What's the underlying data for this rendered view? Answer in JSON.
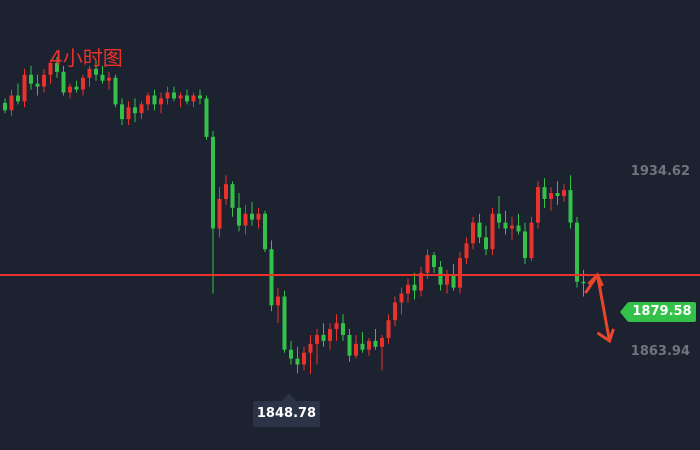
{
  "title": "4小时图",
  "chart_data": {
    "type": "candlestick",
    "title": "4小时图",
    "ylim": [
      1840,
      1955
    ],
    "price_labels": [
      {
        "name": "upper",
        "value": 1934.62,
        "text": "1934.62"
      },
      {
        "name": "lower",
        "value": 1863.94,
        "text": "1863.94"
      }
    ],
    "current_price": {
      "value": 1879.58,
      "text": "1879.58"
    },
    "low_marker": {
      "value": 1848.78,
      "text": "1848.78"
    },
    "horizontal_line": {
      "value": 1882.3
    },
    "colors": {
      "up": "#e8322b",
      "down": "#33c14a",
      "line": "#e8322b",
      "arrow": "#e8452b",
      "background": "#1c2230"
    },
    "candles": [
      [
        1940.5,
        1942.0,
        1937.0,
        1938.0
      ],
      [
        1938.0,
        1945.0,
        1936.0,
        1943.0
      ],
      [
        1943.0,
        1947.0,
        1940.0,
        1941.0
      ],
      [
        1941.0,
        1952.0,
        1939.0,
        1950.0
      ],
      [
        1950.0,
        1953.0,
        1945.0,
        1947.0
      ],
      [
        1947.0,
        1950.0,
        1943.0,
        1946.0
      ],
      [
        1946.0,
        1952.0,
        1944.0,
        1950.0
      ],
      [
        1950.0,
        1955.0,
        1947.0,
        1954.0
      ],
      [
        1954.0,
        1956.0,
        1949.0,
        1951.0
      ],
      [
        1951.0,
        1953.0,
        1943.0,
        1944.0
      ],
      [
        1944.0,
        1947.0,
        1942.0,
        1946.0
      ],
      [
        1946.0,
        1948.0,
        1944.0,
        1945.0
      ],
      [
        1945.0,
        1950.0,
        1943.0,
        1949.0
      ],
      [
        1949.0,
        1953.0,
        1946.0,
        1952.0
      ],
      [
        1952.0,
        1955.0,
        1948.0,
        1950.0
      ],
      [
        1950.0,
        1953.0,
        1947.0,
        1948.0
      ],
      [
        1948.0,
        1951.0,
        1945.0,
        1949.0
      ],
      [
        1949.0,
        1950.0,
        1939.0,
        1940.0
      ],
      [
        1940.0,
        1942.0,
        1933.0,
        1935.0
      ],
      [
        1935.0,
        1941.0,
        1933.0,
        1939.0
      ],
      [
        1939.0,
        1942.0,
        1934.0,
        1937.0
      ],
      [
        1937.0,
        1941.0,
        1935.0,
        1940.0
      ],
      [
        1940.0,
        1944.0,
        1938.0,
        1943.0
      ],
      [
        1943.0,
        1945.0,
        1938.0,
        1940.0
      ],
      [
        1940.0,
        1944.0,
        1937.0,
        1942.0
      ],
      [
        1942.0,
        1946.0,
        1940.0,
        1944.0
      ],
      [
        1944.0,
        1946.0,
        1941.0,
        1942.0
      ],
      [
        1942.0,
        1944.0,
        1939.0,
        1943.0
      ],
      [
        1943.0,
        1945.0,
        1940.0,
        1941.0
      ],
      [
        1941.0,
        1944.0,
        1939.0,
        1943.0
      ],
      [
        1943.0,
        1945.0,
        1940.0,
        1942.0
      ],
      [
        1942.0,
        1943.0,
        1928.0,
        1929.0
      ],
      [
        1929.0,
        1931.0,
        1876.0,
        1898.0
      ],
      [
        1898.0,
        1912.0,
        1895.0,
        1908.0
      ],
      [
        1908.0,
        1916.0,
        1906.0,
        1913.0
      ],
      [
        1913.0,
        1914.0,
        1902.0,
        1905.0
      ],
      [
        1905.0,
        1910.0,
        1897.0,
        1899.0
      ],
      [
        1899.0,
        1906.0,
        1896.0,
        1903.0
      ],
      [
        1903.0,
        1907.0,
        1899.0,
        1901.0
      ],
      [
        1901.0,
        1905.0,
        1898.0,
        1903.0
      ],
      [
        1903.0,
        1904.0,
        1890.0,
        1891.0
      ],
      [
        1891.0,
        1894.0,
        1870.0,
        1872.0
      ],
      [
        1872.0,
        1878.0,
        1866.0,
        1875.0
      ],
      [
        1875.0,
        1877.0,
        1856.0,
        1857.0
      ],
      [
        1857.0,
        1860.0,
        1852.0,
        1854.0
      ],
      [
        1854.0,
        1858.0,
        1849.0,
        1852.0
      ],
      [
        1852.0,
        1858.0,
        1850.0,
        1856.0
      ],
      [
        1856.0,
        1862.0,
        1848.8,
        1859.0
      ],
      [
        1859.0,
        1864.0,
        1852.0,
        1862.0
      ],
      [
        1862.0,
        1866.0,
        1858.0,
        1860.0
      ],
      [
        1860.0,
        1866.0,
        1857.0,
        1864.0
      ],
      [
        1864.0,
        1869.0,
        1860.0,
        1866.0
      ],
      [
        1866.0,
        1869.0,
        1860.0,
        1862.0
      ],
      [
        1862.0,
        1864.0,
        1853.0,
        1855.0
      ],
      [
        1855.0,
        1862.0,
        1854.0,
        1859.0
      ],
      [
        1859.0,
        1863.0,
        1856.0,
        1857.0
      ],
      [
        1857.0,
        1861.0,
        1855.0,
        1860.0
      ],
      [
        1860.0,
        1864.0,
        1857.0,
        1858.0
      ],
      [
        1858.0,
        1862.0,
        1850.0,
        1861.0
      ],
      [
        1861.0,
        1869.0,
        1859.0,
        1867.0
      ],
      [
        1867.0,
        1875.0,
        1865.0,
        1873.0
      ],
      [
        1873.0,
        1878.0,
        1869.0,
        1876.0
      ],
      [
        1876.0,
        1881.0,
        1873.0,
        1879.0
      ],
      [
        1879.0,
        1883.0,
        1874.0,
        1877.0
      ],
      [
        1877.0,
        1885.0,
        1875.0,
        1883.0
      ],
      [
        1883.0,
        1891.0,
        1881.0,
        1889.0
      ],
      [
        1889.0,
        1890.0,
        1883.0,
        1885.0
      ],
      [
        1885.0,
        1887.0,
        1877.0,
        1879.0
      ],
      [
        1879.0,
        1884.0,
        1876.0,
        1882.0
      ],
      [
        1882.0,
        1886.0,
        1877.0,
        1878.0
      ],
      [
        1878.0,
        1890.0,
        1876.0,
        1888.0
      ],
      [
        1888.0,
        1895.0,
        1886.0,
        1893.0
      ],
      [
        1893.0,
        1902.0,
        1891.0,
        1900.0
      ],
      [
        1900.0,
        1903.0,
        1893.0,
        1895.0
      ],
      [
        1895.0,
        1899.0,
        1889.0,
        1891.0
      ],
      [
        1891.0,
        1905.0,
        1889.0,
        1903.0
      ],
      [
        1903.0,
        1909.0,
        1898.0,
        1900.0
      ],
      [
        1900.0,
        1904.0,
        1896.0,
        1898.0
      ],
      [
        1898.0,
        1902.0,
        1894.0,
        1899.0
      ],
      [
        1899.0,
        1903.0,
        1896.0,
        1897.0
      ],
      [
        1897.0,
        1900.0,
        1886.0,
        1888.0
      ],
      [
        1888.0,
        1902.0,
        1887.0,
        1900.0
      ],
      [
        1900.0,
        1914.0,
        1898.0,
        1912.0
      ],
      [
        1912.0,
        1915.0,
        1905.0,
        1908.0
      ],
      [
        1908.0,
        1912.0,
        1904.0,
        1910.0
      ],
      [
        1910.0,
        1914.0,
        1906.0,
        1909.0
      ],
      [
        1909.0,
        1913.0,
        1907.0,
        1911.0
      ],
      [
        1911.0,
        1916.0,
        1898.0,
        1900.0
      ],
      [
        1900.0,
        1902.0,
        1878.0,
        1880.0
      ],
      [
        1880.0,
        1884.0,
        1875.0,
        1879.58
      ]
    ]
  }
}
